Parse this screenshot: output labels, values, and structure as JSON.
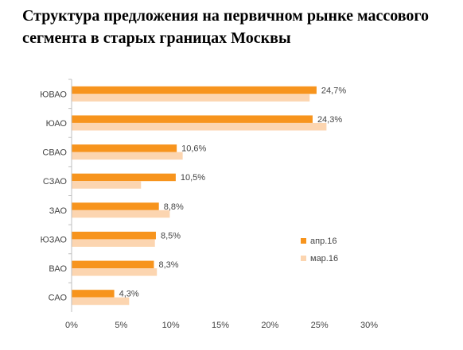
{
  "chart_data": {
    "type": "bar",
    "orientation": "horizontal",
    "title": "Структура предложения  на первичном рынке массового сегмента в старых границах Москвы",
    "categories": [
      "ЮВАО",
      "ЮАО",
      "СВАО",
      "СЗАО",
      "ЗАО",
      "ЮЗАО",
      "ВАО",
      "САО"
    ],
    "series": [
      {
        "name": "апр.16",
        "color": "#F7941D",
        "values": [
          24.7,
          24.3,
          10.6,
          10.5,
          8.8,
          8.5,
          8.3,
          4.3
        ],
        "labels": [
          "24,7%",
          "24,3%",
          "10,6%",
          "10,5%",
          "8,8%",
          "8,5%",
          "8,3%",
          "4,3%"
        ]
      },
      {
        "name": "мар.16",
        "color": "#FCD5B0",
        "values": [
          24.0,
          25.7,
          11.2,
          7.0,
          9.9,
          8.4,
          8.6,
          5.8
        ]
      }
    ],
    "xlim": [
      0,
      30
    ],
    "xticks": [
      "0%",
      "5%",
      "10%",
      "15%",
      "20%",
      "25%",
      "30%"
    ],
    "xtick_values": [
      0,
      5,
      10,
      15,
      20,
      25,
      30
    ],
    "legend": "right",
    "grid": false
  }
}
